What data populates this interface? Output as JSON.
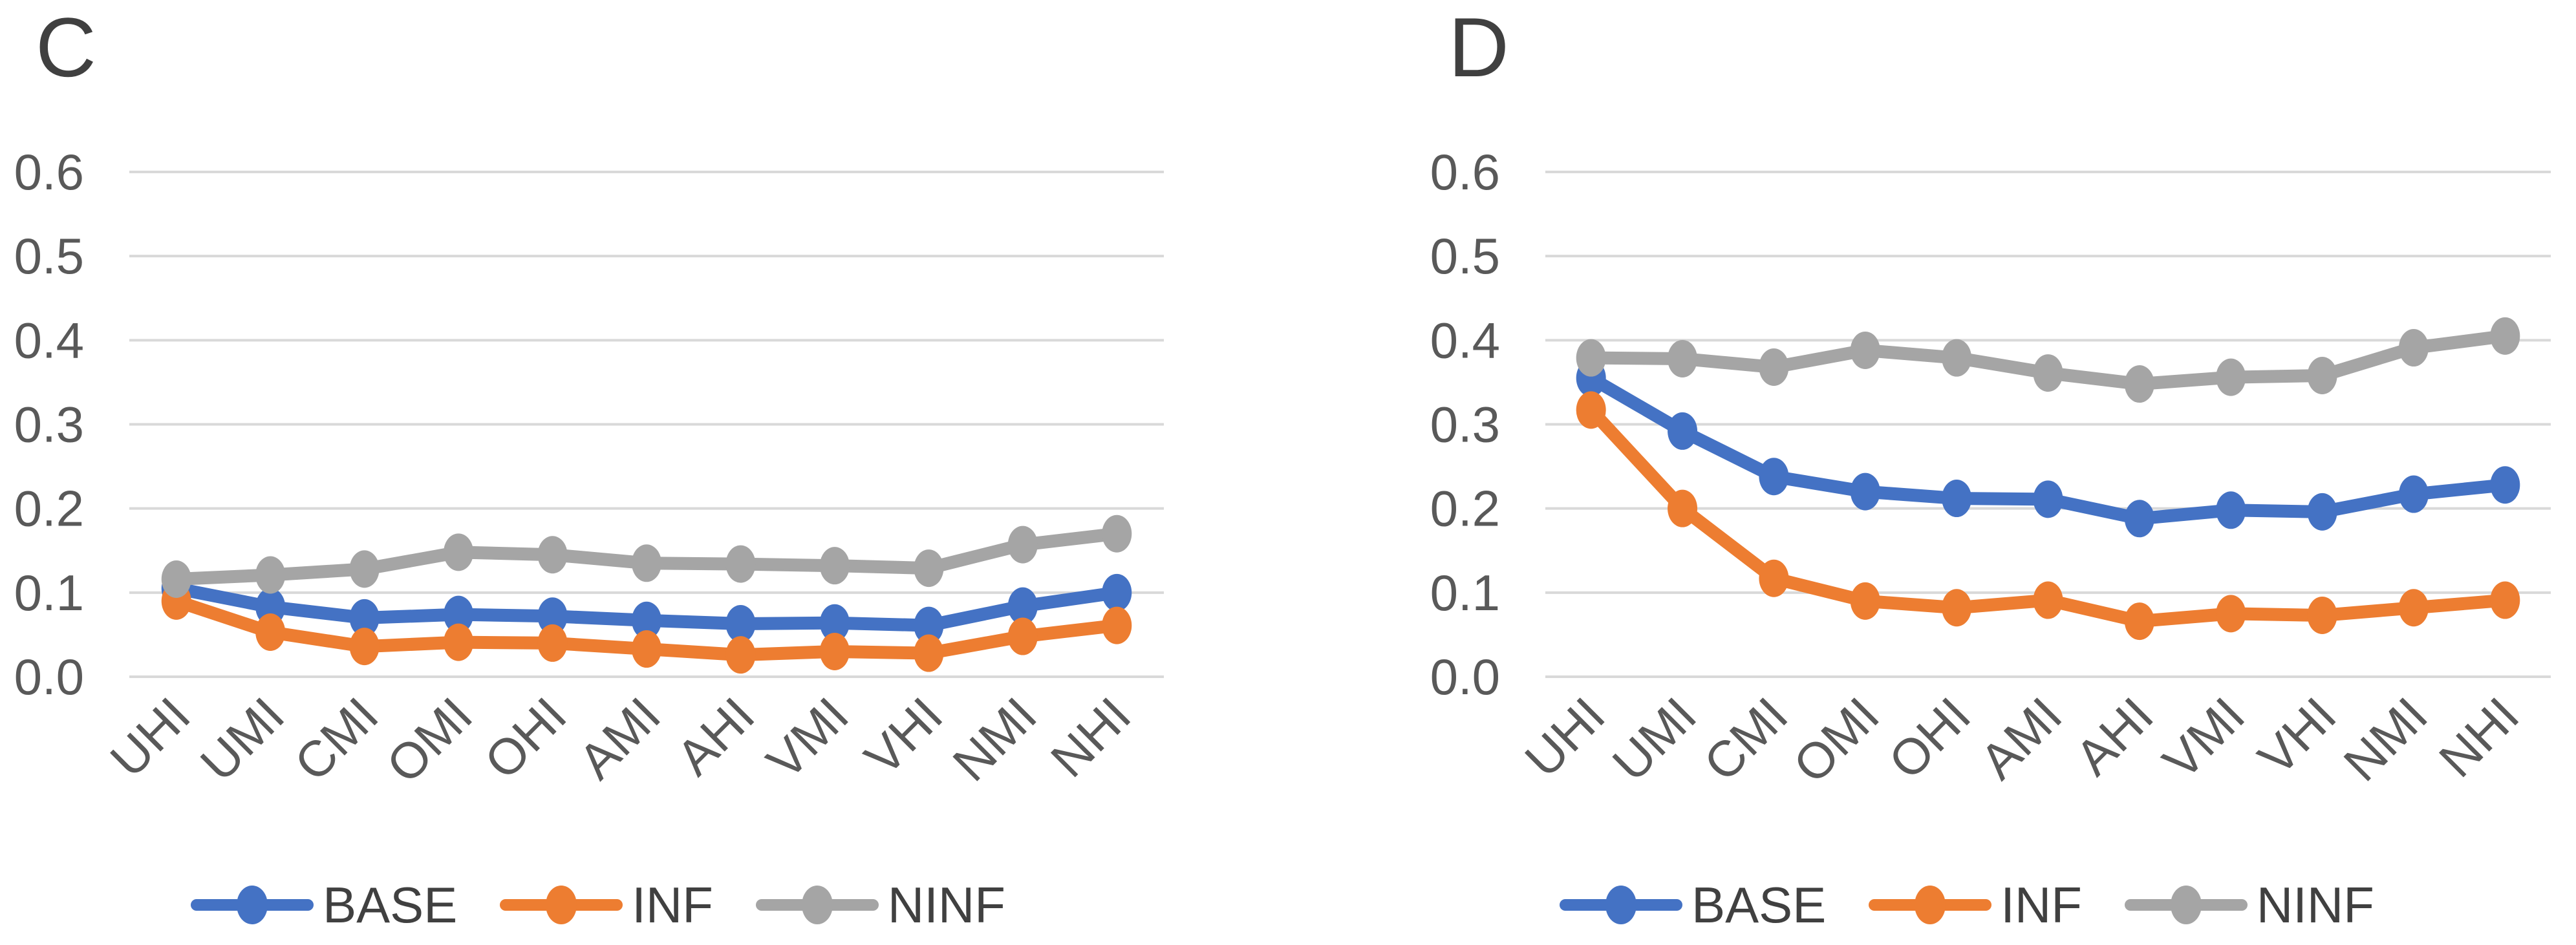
{
  "page": {
    "background": "#ffffff",
    "axis_text_color": "#595959",
    "title_text_color": "#404040",
    "gridline_color": "#d9d9d9"
  },
  "chart_data": [
    {
      "type": "line",
      "title": "C",
      "categories": [
        "UHI",
        "UMI",
        "CMI",
        "OMI",
        "OHI",
        "AMI",
        "AHI",
        "VMI",
        "VHI",
        "NMI",
        "NHI"
      ],
      "series": [
        {
          "name": "BASE",
          "color": "#4472C4",
          "values": [
            0.105,
            0.083,
            0.07,
            0.074,
            0.072,
            0.067,
            0.063,
            0.064,
            0.061,
            0.084,
            0.1
          ]
        },
        {
          "name": "INF",
          "color": "#ED7D31",
          "values": [
            0.09,
            0.053,
            0.036,
            0.041,
            0.04,
            0.033,
            0.026,
            0.03,
            0.028,
            0.048,
            0.061
          ]
        },
        {
          "name": "NINF",
          "color": "#A5A5A5",
          "values": [
            0.116,
            0.121,
            0.128,
            0.148,
            0.145,
            0.135,
            0.134,
            0.132,
            0.129,
            0.157,
            0.17
          ]
        }
      ],
      "ylim": [
        0.0,
        0.6
      ],
      "y_tick_labels": [
        "0.6",
        "0.5",
        "0.4",
        "0.3",
        "0.2",
        "0.1",
        "0.0"
      ],
      "xlabel": "",
      "ylabel": "",
      "grid": "horizontal",
      "legend_position": "bottom",
      "x_tick_rotation_deg": 45
    },
    {
      "type": "line",
      "title": "D",
      "categories": [
        "UHI",
        "UMI",
        "CMI",
        "OMI",
        "OHI",
        "AMI",
        "AHI",
        "VMI",
        "VHI",
        "NMI",
        "NHI"
      ],
      "series": [
        {
          "name": "BASE",
          "color": "#4472C4",
          "values": [
            0.355,
            0.292,
            0.238,
            0.22,
            0.212,
            0.211,
            0.188,
            0.198,
            0.196,
            0.217,
            0.228
          ]
        },
        {
          "name": "INF",
          "color": "#ED7D31",
          "values": [
            0.317,
            0.2,
            0.117,
            0.09,
            0.082,
            0.091,
            0.066,
            0.075,
            0.073,
            0.082,
            0.091
          ]
        },
        {
          "name": "NINF",
          "color": "#A5A5A5",
          "values": [
            0.379,
            0.378,
            0.368,
            0.388,
            0.379,
            0.361,
            0.348,
            0.356,
            0.358,
            0.391,
            0.405
          ]
        }
      ],
      "ylim": [
        0.0,
        0.6
      ],
      "y_tick_labels": [
        "0.6",
        "0.5",
        "0.4",
        "0.3",
        "0.2",
        "0.1",
        "0.0"
      ],
      "xlabel": "",
      "ylabel": "",
      "grid": "horizontal",
      "legend_position": "bottom",
      "x_tick_rotation_deg": 45
    }
  ]
}
